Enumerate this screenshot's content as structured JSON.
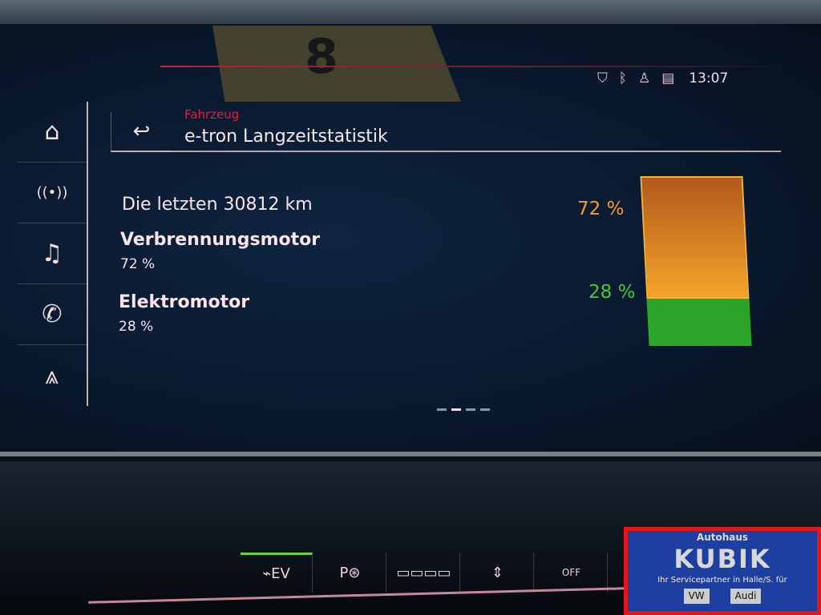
{
  "status_bar": {
    "icons": [
      "connectivity-shield-icon",
      "bluetooth-icon",
      "profile-icon",
      "phone-signal-icon"
    ],
    "time": "13:07"
  },
  "sticker": {
    "number": "8"
  },
  "sidebar": {
    "items": [
      {
        "name": "home",
        "icon": "⌂"
      },
      {
        "name": "radio",
        "icon": "((•))"
      },
      {
        "name": "media",
        "icon": "♫"
      },
      {
        "name": "phone",
        "icon": "✆"
      },
      {
        "name": "navigation",
        "icon": "⩓"
      }
    ]
  },
  "header": {
    "breadcrumb": "Fahrzeug",
    "title": "e-tron Langzeitstatistik",
    "back_icon": "↩"
  },
  "stats": {
    "distance_label": "Die letzten 30812 km",
    "combustion": {
      "label": "Verbrennungsmotor",
      "value": "72 %",
      "percent": 72
    },
    "electric": {
      "label": "Elektromotor",
      "value": "28 %",
      "percent": 28
    }
  },
  "colors": {
    "combustion": "#f39a2a",
    "electric": "#38d038",
    "accent": "#e02040"
  },
  "pager": {
    "pages": 4,
    "current": 2
  },
  "console": {
    "buttons": [
      "⌁EV",
      "P⊛",
      "▭▭▭▭",
      "⇕",
      "OFF"
    ]
  },
  "dealer_logo": {
    "top": "Autohaus",
    "name": "KUBIK",
    "tagline": "Ihr Servicepartner in Halle/S. für",
    "brands": [
      "VW",
      "Audi"
    ]
  }
}
